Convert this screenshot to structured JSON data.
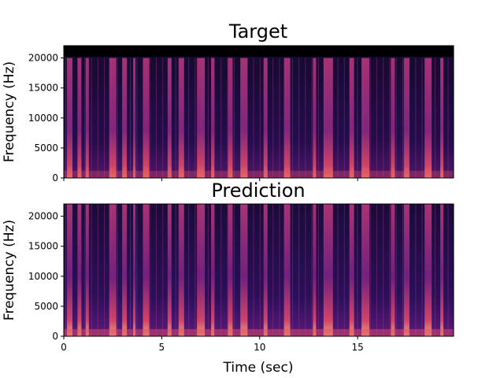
{
  "chart_data": [
    {
      "type": "heatmap",
      "title": "Target",
      "ylabel": "Frequency (Hz)",
      "xlabel": "",
      "xlim": [
        0,
        19.9
      ],
      "ylim": [
        0,
        22050
      ],
      "yticks": [
        0,
        5000,
        10000,
        15000,
        20000
      ],
      "ytick_labels": [
        "0",
        "5000",
        "10000",
        "15000",
        "20000"
      ],
      "xticks": [
        0,
        5,
        10,
        15
      ],
      "xtick_labels": [],
      "colormap": "magma",
      "content_max_hz": 20000,
      "bright_bands_sec": [
        0.3,
        0.8,
        1.2,
        2.5,
        3.1,
        3.6,
        4.2,
        5.4,
        6.0,
        7.0,
        7.6,
        8.5,
        9.2,
        10.3,
        11.4,
        12.8,
        13.5,
        14.7,
        15.4,
        16.8,
        17.5,
        18.6,
        19.3
      ]
    },
    {
      "type": "heatmap",
      "title": "Prediction",
      "ylabel": "Frequency (Hz)",
      "xlabel": "Time (sec)",
      "xlim": [
        0,
        19.9
      ],
      "ylim": [
        0,
        22050
      ],
      "yticks": [
        0,
        5000,
        10000,
        15000,
        20000
      ],
      "ytick_labels": [
        "0",
        "5000",
        "10000",
        "15000",
        "20000"
      ],
      "xticks": [
        0,
        5,
        10,
        15
      ],
      "xtick_labels": [
        "0",
        "5",
        "10",
        "15"
      ],
      "colormap": "magma",
      "content_max_hz": 22050,
      "bright_bands_sec": [
        0.3,
        0.8,
        1.2,
        2.5,
        3.1,
        3.6,
        4.2,
        5.4,
        6.0,
        7.0,
        7.6,
        8.5,
        9.2,
        10.3,
        11.4,
        12.8,
        13.5,
        14.7,
        15.4,
        16.8,
        17.5,
        18.6,
        19.3
      ]
    }
  ]
}
